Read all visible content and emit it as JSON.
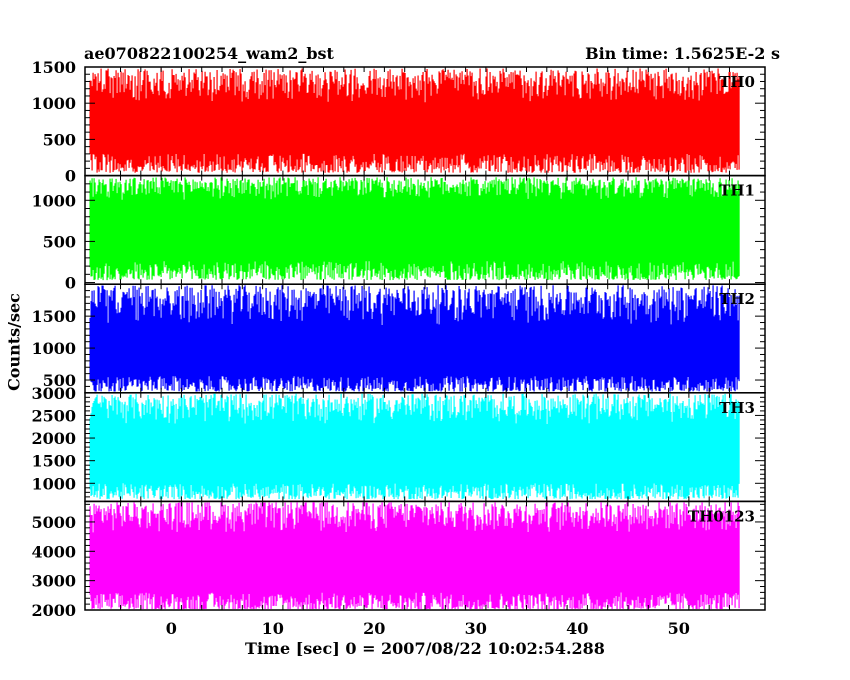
{
  "header": {
    "title": "ae070822100254_wam2_bst",
    "bin_time": "Bin time: 1.5625E-2 s"
  },
  "chart_data": {
    "type": "line",
    "xlabel": "Time [sec] 0 = 2007/08/22 10:02:54.288",
    "ylabel": "Counts/sec",
    "xlim": [
      -8.5,
      58.5
    ],
    "data_xrange": [
      -8,
      56
    ],
    "xticks_major": [
      0,
      10,
      20,
      30,
      40,
      50
    ],
    "grid": false,
    "panels": [
      {
        "name": "TH0",
        "color": "#ff0000",
        "ylim": [
          0,
          1500
        ],
        "yticks": [
          0,
          500,
          1000,
          1500
        ],
        "low_min": 40,
        "low_max": 300,
        "high_min": 1000,
        "high_max": 1480
      },
      {
        "name": "TH1",
        "color": "#00ff00",
        "ylim": [
          -20,
          1300
        ],
        "yticks": [
          0,
          500,
          1000
        ],
        "low_min": 30,
        "low_max": 260,
        "high_min": 1000,
        "high_max": 1280
      },
      {
        "name": "TH2",
        "color": "#0000ff",
        "ylim": [
          300,
          2000
        ],
        "yticks": [
          500,
          1000,
          1500
        ],
        "low_min": 320,
        "low_max": 560,
        "high_min": 1350,
        "high_max": 1990
      },
      {
        "name": "TH3",
        "color": "#00ffff",
        "ylim": [
          600,
          3000
        ],
        "yticks": [
          1000,
          1500,
          2000,
          2500,
          3000
        ],
        "low_min": 650,
        "low_max": 1000,
        "high_min": 2300,
        "high_max": 2980
      },
      {
        "name": "TH0123",
        "color": "#ff00ff",
        "ylim": [
          2000,
          5700
        ],
        "yticks": [
          2000,
          3000,
          4000,
          5000
        ],
        "low_min": 2000,
        "low_max": 2600,
        "high_min": 4600,
        "high_max": 5700
      }
    ]
  }
}
